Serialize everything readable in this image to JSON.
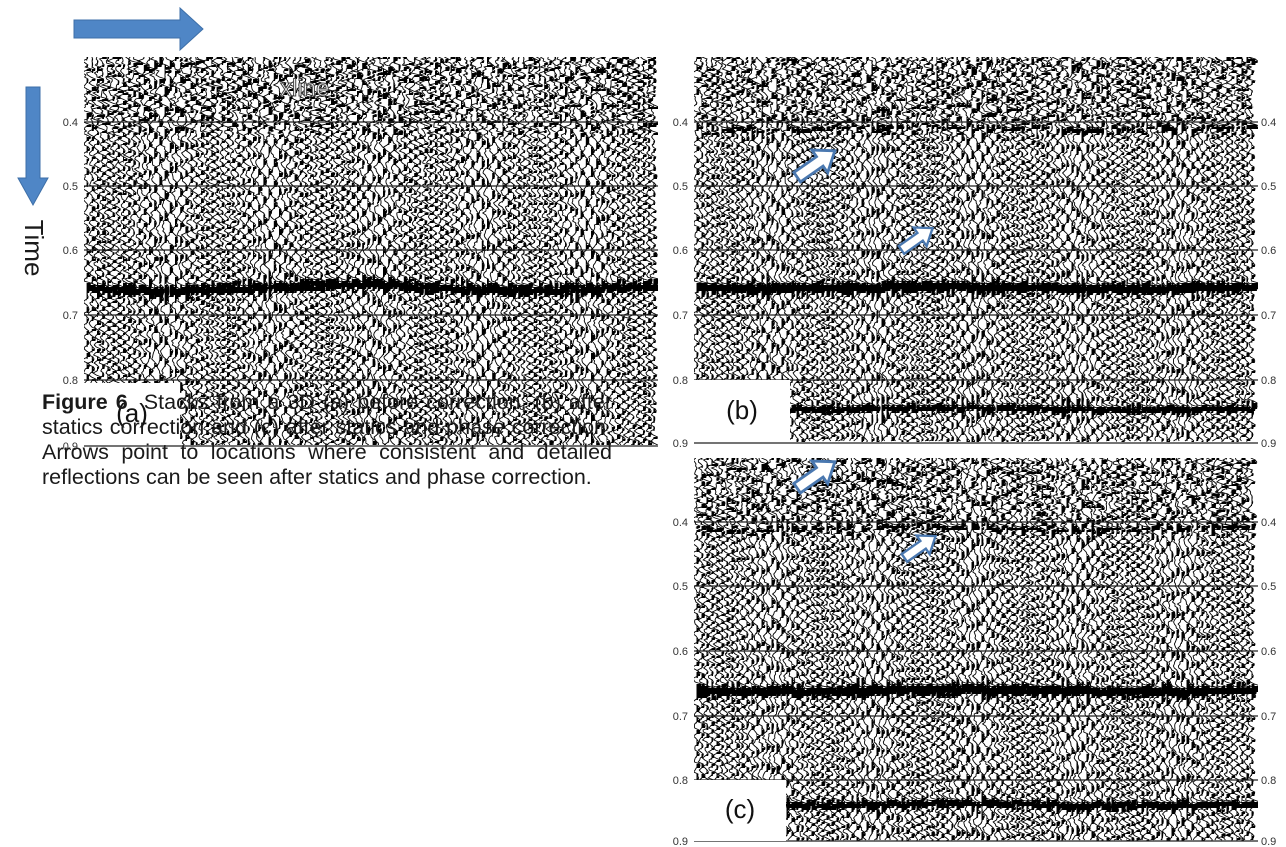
{
  "axis": {
    "time_label": "Time",
    "xline_label": "xline"
  },
  "ticks": [
    "0.4",
    "0.5",
    "0.6",
    "0.7",
    "0.8",
    "0.9"
  ],
  "panels": [
    {
      "id": "a",
      "label": "(a)",
      "arrows": []
    },
    {
      "id": "b",
      "label": "(b)",
      "arrows": [
        "reflection-arrow",
        "reflection-arrow"
      ]
    },
    {
      "id": "c",
      "label": "(c)",
      "arrows": [
        "reflection-arrow",
        "reflection-arrow"
      ]
    }
  ],
  "caption": {
    "figure_label": "Figure 6",
    "text": "Stacks from a 3D (a) before correction, (b) after statics correction and (c) after statics and phase correction. Arrows point to locations where consistent and detailed reflections can be seen after statics and phase correction."
  },
  "colors": {
    "arrow_fill": "#4f86c6",
    "trace_ink": "#000000",
    "panel_arrow_outline": "#4a78b0"
  }
}
